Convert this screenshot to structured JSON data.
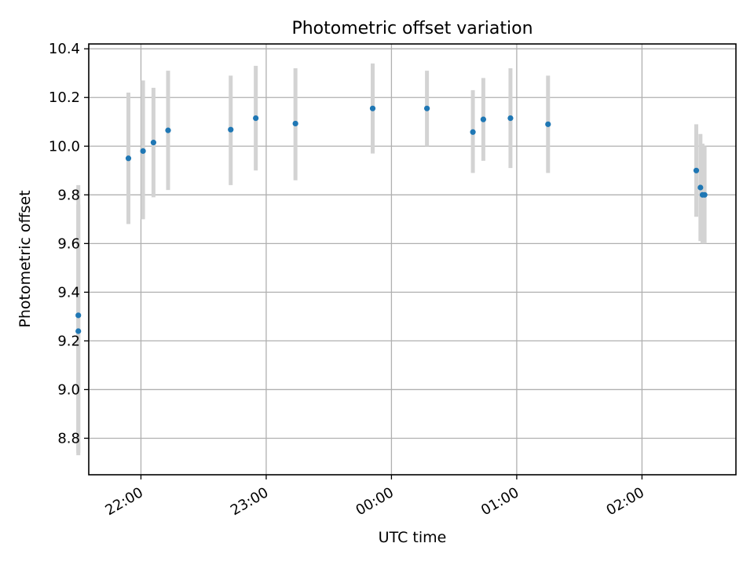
{
  "chart_data": {
    "type": "scatter",
    "title": "Photometric offset variation",
    "xlabel": "UTC time",
    "ylabel": "Photometric offset",
    "xlim": [
      "21:35",
      "02:45"
    ],
    "ylim": [
      8.65,
      10.42
    ],
    "grid": true,
    "x_ticks": [
      "22:00",
      "23:00",
      "00:00",
      "01:00",
      "02:00"
    ],
    "y_ticks": [
      "8.8",
      "9.0",
      "9.2",
      "9.4",
      "9.6",
      "9.8",
      "10.0",
      "10.2",
      "10.4"
    ],
    "marker_color": "#1f77b4",
    "errorbar_color": "#d3d3d3",
    "points": [
      {
        "x": "21:30",
        "y": 9.305,
        "err_low": 8.74,
        "err_high": 9.84
      },
      {
        "x": "21:30",
        "y": 9.24,
        "err_low": 8.73,
        "err_high": 9.76
      },
      {
        "x": "21:54",
        "y": 9.95,
        "err_low": 9.68,
        "err_high": 10.22
      },
      {
        "x": "22:01",
        "y": 9.98,
        "err_low": 9.7,
        "err_high": 10.27
      },
      {
        "x": "22:06",
        "y": 10.015,
        "err_low": 9.79,
        "err_high": 10.24
      },
      {
        "x": "22:13",
        "y": 10.065,
        "err_low": 9.82,
        "err_high": 10.31
      },
      {
        "x": "22:43",
        "y": 10.068,
        "err_low": 9.84,
        "err_high": 10.29
      },
      {
        "x": "22:55",
        "y": 10.115,
        "err_low": 9.9,
        "err_high": 10.33
      },
      {
        "x": "23:14",
        "y": 10.093,
        "err_low": 9.86,
        "err_high": 10.32
      },
      {
        "x": "23:51",
        "y": 10.155,
        "err_low": 9.97,
        "err_high": 10.34
      },
      {
        "x": "00:17",
        "y": 10.155,
        "err_low": 10.0,
        "err_high": 10.31
      },
      {
        "x": "00:39",
        "y": 10.058,
        "err_low": 9.89,
        "err_high": 10.23
      },
      {
        "x": "00:44",
        "y": 10.11,
        "err_low": 9.94,
        "err_high": 10.28
      },
      {
        "x": "00:57",
        "y": 10.115,
        "err_low": 9.91,
        "err_high": 10.32
      },
      {
        "x": "01:15",
        "y": 10.09,
        "err_low": 9.89,
        "err_high": 10.29
      },
      {
        "x": "02:26",
        "y": 9.9,
        "err_low": 9.71,
        "err_high": 10.09
      },
      {
        "x": "02:28",
        "y": 9.83,
        "err_low": 9.61,
        "err_high": 10.05
      },
      {
        "x": "02:29",
        "y": 9.8,
        "err_low": 9.6,
        "err_high": 10.01
      },
      {
        "x": "02:30",
        "y": 9.8,
        "err_low": 9.6,
        "err_high": 10.0
      }
    ]
  }
}
